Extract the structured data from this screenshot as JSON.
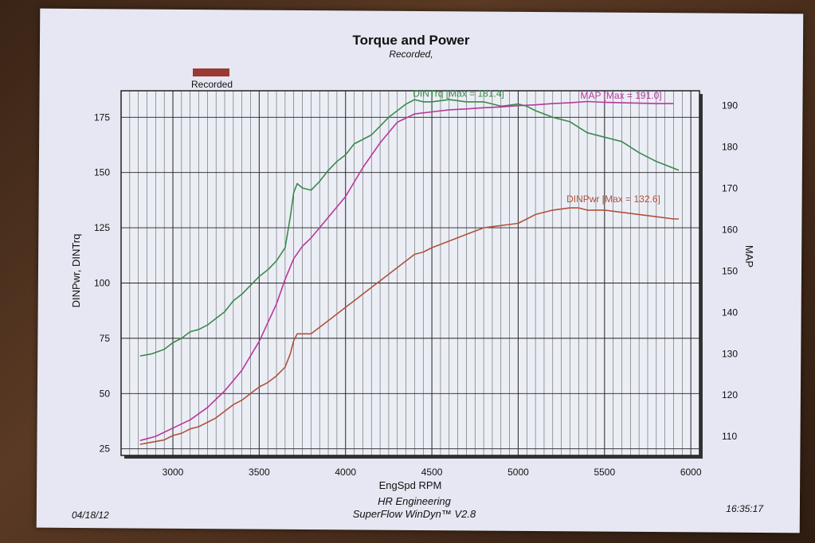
{
  "header": {
    "title": "Torque and Power",
    "subtitle": "Recorded,"
  },
  "legend": {
    "label": "Recorded",
    "color": "#9a3a32"
  },
  "footer": {
    "date": "04/18/12",
    "company": "HR Engineering",
    "software": "SuperFlow WinDyn™ V2.8",
    "time": "16:35:17"
  },
  "colors": {
    "torque": "#3a8a4a",
    "power": "#b0523a",
    "map": "#b8379a",
    "grid": "#222222"
  },
  "chart_data": {
    "type": "line",
    "xlabel": "EngSpd  RPM",
    "ylabel": "DINPwr, DINTrq",
    "y2label": "MAP",
    "xlim": [
      2700,
      6050
    ],
    "ylim": [
      22,
      187
    ],
    "y2lim": [
      105.4,
      193.6
    ],
    "x_ticks": [
      3000,
      3500,
      4000,
      4500,
      5000,
      5500,
      6000
    ],
    "y_ticks": [
      25,
      50,
      75,
      100,
      125,
      150,
      175
    ],
    "y2_ticks": [
      110,
      120,
      130,
      140,
      150,
      160,
      170,
      180,
      190
    ],
    "series": [
      {
        "name": "DINTrq",
        "label": "DINTrq [Max = 181.4]",
        "axis": "left",
        "x": [
          2810,
          2880,
          2950,
          3000,
          3050,
          3100,
          3150,
          3200,
          3250,
          3300,
          3350,
          3400,
          3450,
          3500,
          3550,
          3600,
          3650,
          3680,
          3700,
          3720,
          3750,
          3800,
          3850,
          3900,
          3950,
          4000,
          4050,
          4100,
          4150,
          4200,
          4250,
          4300,
          4350,
          4400,
          4450,
          4500,
          4600,
          4700,
          4800,
          4900,
          5000,
          5050,
          5100,
          5200,
          5300,
          5400,
          5500,
          5600,
          5700,
          5800,
          5900,
          5930
        ],
        "y": [
          67,
          68,
          70,
          73,
          75,
          78,
          79,
          81,
          84,
          87,
          92,
          95,
          99,
          103,
          106,
          110,
          116,
          130,
          141,
          145,
          143,
          142,
          146,
          151,
          155,
          158,
          163,
          165,
          167,
          171,
          175,
          178,
          181,
          183,
          182,
          182,
          183,
          182,
          182,
          180,
          181,
          180,
          178,
          175,
          173,
          168,
          166,
          164,
          159,
          155,
          152,
          151
        ]
      },
      {
        "name": "DINPwr",
        "label": "DINPwr [Max = 132.6]",
        "axis": "left",
        "x": [
          2810,
          2880,
          2950,
          3000,
          3050,
          3100,
          3150,
          3200,
          3250,
          3300,
          3350,
          3400,
          3450,
          3500,
          3550,
          3600,
          3650,
          3680,
          3700,
          3720,
          3750,
          3800,
          3850,
          3900,
          3950,
          4000,
          4050,
          4100,
          4150,
          4200,
          4250,
          4300,
          4350,
          4400,
          4450,
          4500,
          4600,
          4700,
          4800,
          4900,
          5000,
          5050,
          5100,
          5200,
          5300,
          5350,
          5400,
          5500,
          5600,
          5700,
          5800,
          5900,
          5930
        ],
        "y": [
          27,
          28,
          29,
          31,
          32,
          34,
          35,
          37,
          39,
          42,
          45,
          47,
          50,
          53,
          55,
          58,
          62,
          68,
          74,
          77,
          77,
          77,
          80,
          83,
          86,
          89,
          92,
          95,
          98,
          101,
          104,
          107,
          110,
          113,
          114,
          116,
          119,
          122,
          125,
          126,
          127,
          129,
          131,
          133,
          134,
          134,
          133,
          133,
          132,
          131,
          130,
          129,
          129
        ]
      },
      {
        "name": "MAP",
        "label": "MAP    [Max = 191.0]",
        "axis": "right",
        "x": [
          2810,
          2900,
          3000,
          3100,
          3200,
          3300,
          3400,
          3500,
          3600,
          3650,
          3700,
          3750,
          3800,
          3900,
          4000,
          4100,
          4200,
          4300,
          4400,
          4500,
          4600,
          4700,
          4800,
          4900,
          5000,
          5100,
          5200,
          5300,
          5400,
          5500,
          5600,
          5700,
          5800,
          5900
        ],
        "y": [
          109,
          110,
          112,
          114,
          117,
          121,
          126,
          133,
          142,
          148,
          153,
          156,
          158,
          163,
          168,
          175,
          181,
          186,
          188,
          188.5,
          189,
          189.2,
          189.5,
          189.7,
          190,
          190.2,
          190.5,
          190.7,
          191,
          190.8,
          190.7,
          190.6,
          190.5,
          190.5
        ]
      }
    ]
  }
}
